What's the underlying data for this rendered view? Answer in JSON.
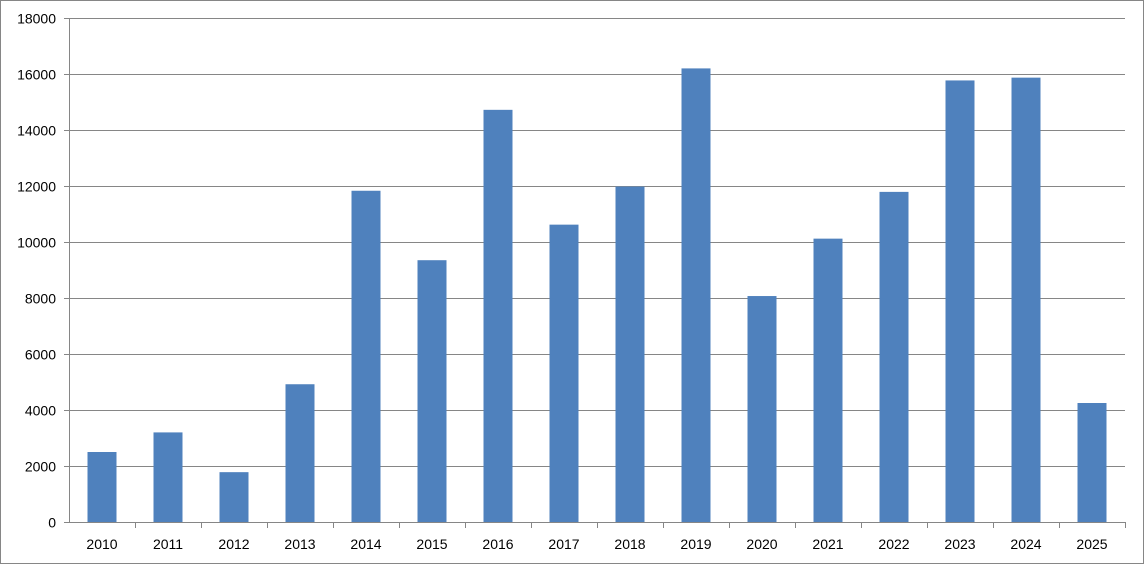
{
  "chart_data": {
    "type": "bar",
    "title": "",
    "xlabel": "",
    "ylabel": "",
    "categories": [
      "2010",
      "2011",
      "2012",
      "2013",
      "2014",
      "2015",
      "2016",
      "2017",
      "2018",
      "2019",
      "2020",
      "2021",
      "2022",
      "2023",
      "2024",
      "2025"
    ],
    "series": [
      {
        "values": [
          2500,
          3200,
          1780,
          4920,
          11830,
          9350,
          14720,
          10620,
          11980,
          16200,
          8070,
          10120,
          11790,
          15770,
          15870,
          4250
        ]
      }
    ],
    "ylim": [
      0,
      18000
    ],
    "yticks": [
      "0",
      "2000",
      "4000",
      "6000",
      "8000",
      "10000",
      "12000",
      "14000",
      "16000",
      "18000"
    ],
    "grid": true,
    "legend": "none",
    "colors": {
      "bar": "#4F81BD",
      "grid": "#868686",
      "axis": "#868686"
    }
  }
}
